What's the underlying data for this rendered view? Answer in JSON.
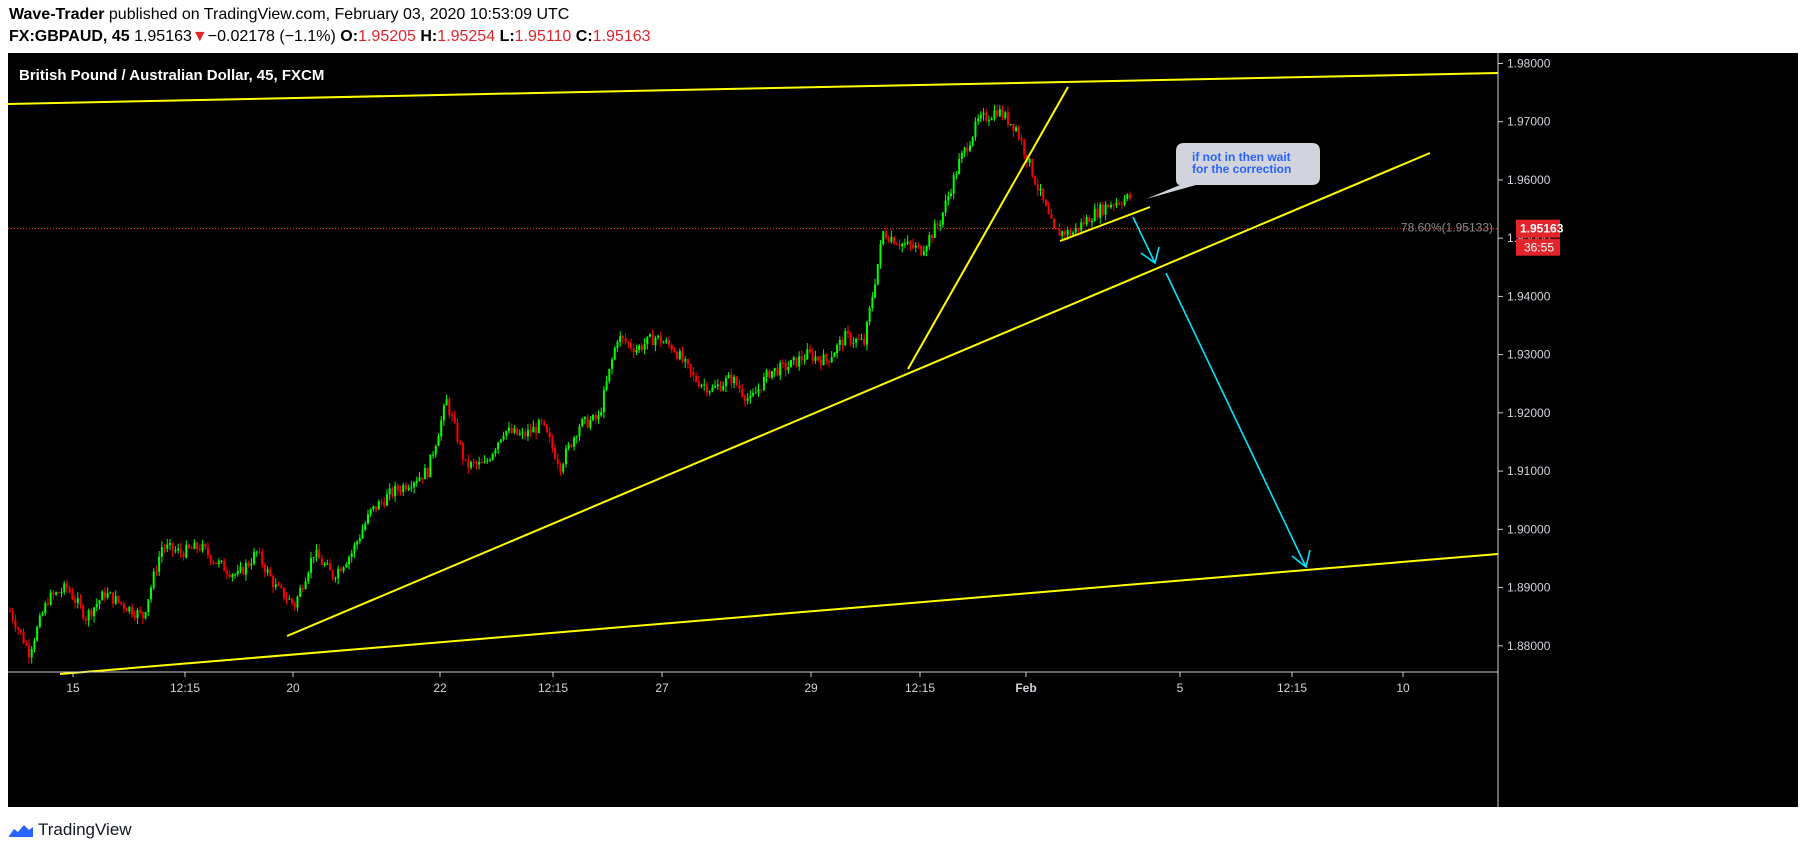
{
  "header": {
    "author": "Wave-Trader",
    "published": "published on TradingView.com, February 03, 2020 10:53:09 UTC",
    "symbol": "FX:GBPAUD, 45",
    "last": "1.95163",
    "change_arrow": "▼",
    "change": "−0.02178 (−1.1%)",
    "o_label": "O:",
    "o_value": "1.95205",
    "h_label": "H:",
    "h_value": "1.95254",
    "l_label": "L:",
    "l_value": "1.95110",
    "c_label": "C:",
    "c_value": "1.95163"
  },
  "chart_title": "British Pound / Australian Dollar, 45, FXCM",
  "footer": {
    "brand": "TradingView",
    "icon": "tradingview-logo-icon"
  },
  "colors": {
    "background": "#000000",
    "up": "#00ff00",
    "down": "#ff0000",
    "trendline": "#ffff00",
    "arrow": "#00e5ff",
    "price_label": "#e3242b",
    "callout_bg": "#d1d4dc",
    "callout_text": "#2962ff"
  },
  "chart_data": {
    "type": "candlestick",
    "ylim": [
      1.8755,
      1.9818
    ],
    "y_ticks": [
      "1.98000",
      "1.97000",
      "1.96000",
      "1.95000",
      "1.94000",
      "1.93000",
      "1.92000",
      "1.91000",
      "1.90000",
      "1.89000",
      "1.88000"
    ],
    "x_ticks": [
      "15",
      "12:15",
      "20",
      "22",
      "12:15",
      "27",
      "29",
      "12:15",
      "Feb",
      "5",
      "12:15",
      "10"
    ],
    "last_price": {
      "label": "1.95163",
      "countdown": "36:55",
      "value": 1.95163
    },
    "fib_level": {
      "label": "78.60%(1.95133)",
      "value": 1.95133
    },
    "annotation": "if not in then wait\nfor the correction",
    "price_path_keypoints": [
      1.886,
      1.879,
      1.888,
      1.89,
      1.885,
      1.889,
      1.887,
      1.885,
      1.897,
      1.896,
      1.897,
      1.894,
      1.892,
      1.896,
      1.89,
      1.887,
      1.896,
      1.892,
      1.896,
      1.903,
      1.906,
      1.908,
      1.91,
      1.922,
      1.911,
      1.911,
      1.917,
      1.916,
      1.918,
      1.911,
      1.918,
      1.919,
      1.933,
      1.931,
      1.933,
      1.931,
      1.926,
      1.924,
      1.926,
      1.922,
      1.927,
      1.928,
      1.93,
      1.929,
      1.933,
      1.932,
      1.951,
      1.949,
      1.948,
      1.953,
      1.963,
      1.97,
      1.972,
      1.969,
      1.96,
      1.951,
      1.951,
      1.954,
      1.956,
      1.957
    ]
  }
}
